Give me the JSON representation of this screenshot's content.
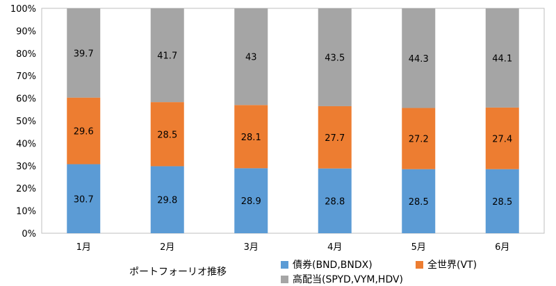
{
  "chart_data": {
    "type": "bar",
    "stacked": true,
    "percent": true,
    "categories": [
      "1月",
      "2月",
      "3月",
      "4月",
      "5月",
      "6月"
    ],
    "series": [
      {
        "name": "債券(BND,BNDX)",
        "color": "#5b9bd5",
        "values": [
          30.7,
          29.8,
          28.9,
          28.8,
          28.5,
          28.5
        ]
      },
      {
        "name": "全世界(VT)",
        "color": "#ed7d31",
        "values": [
          29.6,
          28.5,
          28.1,
          27.7,
          27.2,
          27.4
        ]
      },
      {
        "name": "高配当(SPYD,VYM,HDV)",
        "color": "#a5a5a5",
        "values": [
          39.7,
          41.7,
          43,
          43.5,
          44.3,
          44.1
        ]
      }
    ],
    "y_ticks": [
      "0%",
      "10%",
      "20%",
      "30%",
      "40%",
      "50%",
      "60%",
      "70%",
      "80%",
      "90%",
      "100%"
    ],
    "ylim": [
      0,
      100
    ],
    "grid": false,
    "legend_position": "bottom",
    "caption": "ポートフォーリオ推移"
  }
}
